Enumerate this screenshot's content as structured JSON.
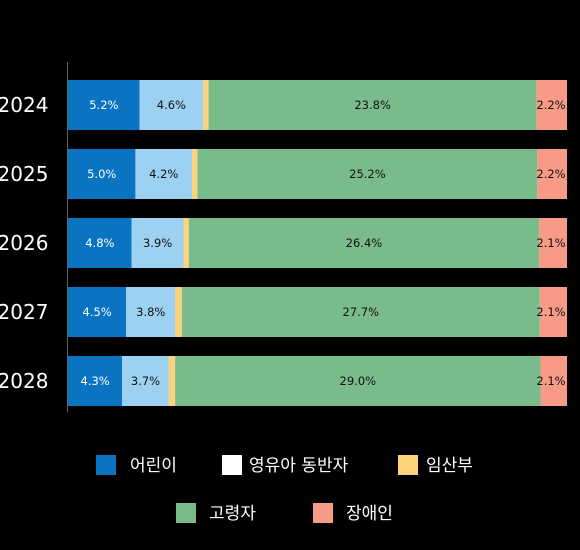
{
  "chart_data": {
    "type": "bar",
    "orientation": "horizontal",
    "stacked": true,
    "categories": [
      "2024",
      "2025",
      "2026",
      "2027",
      "2028"
    ],
    "series": [
      {
        "name": "어린이",
        "color": "#0a74c2",
        "values": [
          5.2,
          5.0,
          4.8,
          4.5,
          4.3
        ],
        "labels": [
          "5.2%",
          "5.0%",
          "4.8%",
          "4.5%",
          "4.3%"
        ]
      },
      {
        "name": "영유아 동반자",
        "color": "#9dd1f2",
        "values": [
          4.6,
          4.2,
          3.9,
          3.8,
          3.7
        ],
        "labels": [
          "4.6%",
          "4.2%",
          "3.9%",
          "3.8%",
          "3.7%"
        ]
      },
      {
        "name": "임산부",
        "color": "#fdd27c",
        "values": [
          0.4,
          0.4,
          0.4,
          0.5,
          0.5
        ],
        "labels": [
          "0.4%",
          "0.4%",
          "0.4%",
          "0.5%",
          "0.5%"
        ]
      },
      {
        "name": "고령자",
        "color": "#79bb8b",
        "values": [
          23.8,
          25.2,
          26.4,
          27.7,
          29.0
        ],
        "labels": [
          "23.8%",
          "25.2%",
          "26.4%",
          "27.7%",
          "29.0%"
        ]
      },
      {
        "name": "장애인",
        "color": "#f79b86",
        "values": [
          2.2,
          2.2,
          2.1,
          2.1,
          2.1
        ],
        "labels": [
          "2.2%",
          "2.2%",
          "2.1%",
          "2.1%",
          "2.1%"
        ]
      }
    ],
    "legend": {
      "position": "bottom",
      "entries": [
        {
          "name": "어린이",
          "color": "#0a74c2"
        },
        {
          "name": "영유아 동반자",
          "color": "#ffffff"
        },
        {
          "name": "임산부",
          "color": "#fdd27c"
        },
        {
          "name": "고령자",
          "color": "#79bb8b"
        },
        {
          "name": "장애인",
          "color": "#f79b86"
        }
      ]
    },
    "bar_background": "#ffffff",
    "grid": false
  }
}
